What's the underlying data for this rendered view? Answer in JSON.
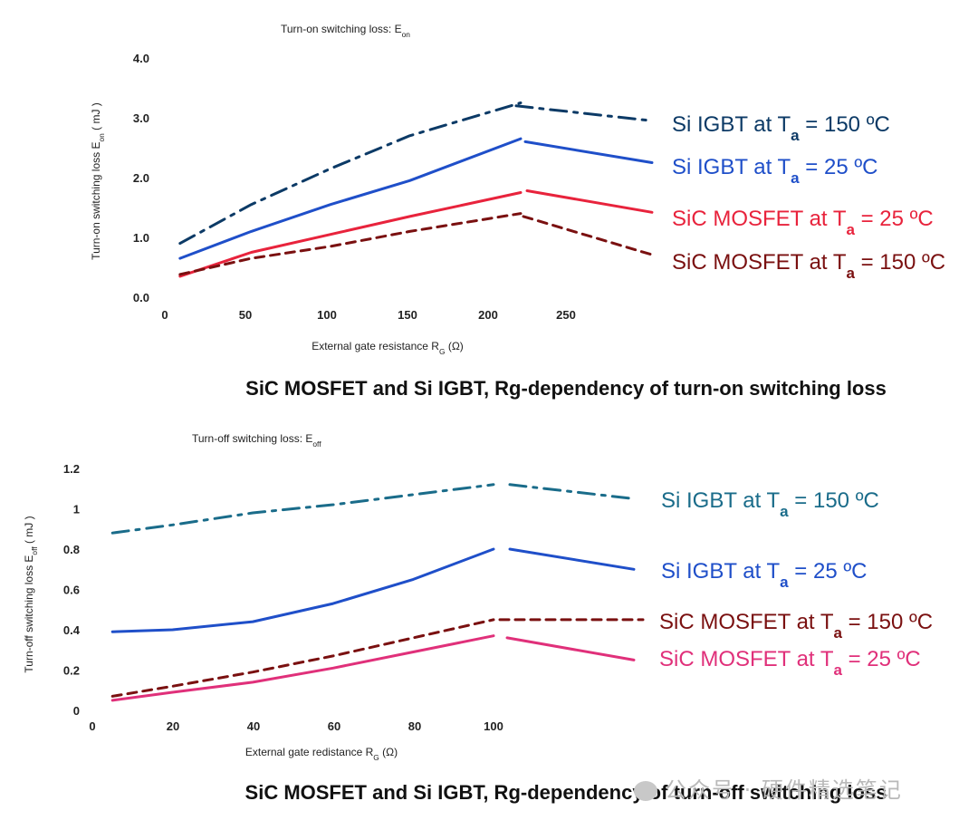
{
  "watermark": "公众号 · 硬件精选笔记",
  "chart_data": [
    {
      "type": "line",
      "title": "Turn-on switching loss: E_on",
      "caption": "SiC MOSFET and Si IGBT, Rg-dependency of turn-on switching loss",
      "xlabel": "External gate resistance R_G (Ω)",
      "ylabel": "Turn-on switching loss E_on ( mJ )",
      "xlim": [
        0,
        250
      ],
      "ylim": [
        0,
        4.0
      ],
      "xticks": [
        "0",
        "50",
        "100",
        "150",
        "200",
        "250"
      ],
      "yticks": [
        "0.0",
        "1.0",
        "2.0",
        "3.0",
        "4.0"
      ],
      "series": [
        {
          "name": "Si IGBT at Ta = 150 ºC",
          "label_main": "Si IGBT at T",
          "label_sub": "a",
          "label_tail": " = 150 ºC",
          "color": "#0c3a66",
          "dash": "dashdot",
          "x": [
            5,
            50,
            100,
            150,
            220
          ],
          "y": [
            0.9,
            1.55,
            2.15,
            2.7,
            3.25
          ],
          "tail": [
            [
              225,
              3.2
            ],
            [
              300,
              2.95
            ]
          ]
        },
        {
          "name": "Si IGBT at Ta = 25 ºC",
          "label_main": "Si IGBT at T",
          "label_sub": "a",
          "label_tail": " = 25 ºC",
          "color": "#1f4fc9",
          "dash": "solid",
          "x": [
            5,
            50,
            100,
            150,
            220
          ],
          "y": [
            0.65,
            1.1,
            1.55,
            1.95,
            2.65
          ],
          "tail": [
            [
              225,
              2.6
            ],
            [
              300,
              2.25
            ]
          ]
        },
        {
          "name": "SiC MOSFET at Ta = 25 ºC",
          "label_main": "SiC MOSFET at T",
          "label_sub": "a",
          "label_tail": " = 25 ºC",
          "color": "#e8233c",
          "dash": "solid",
          "x": [
            5,
            50,
            100,
            150,
            220
          ],
          "y": [
            0.35,
            0.75,
            1.05,
            1.35,
            1.75
          ],
          "tail": [
            [
              225,
              1.78
            ],
            [
              300,
              1.42
            ]
          ]
        },
        {
          "name": "SiC MOSFET at Ta = 150 ºC",
          "label_main": "SiC MOSFET at T",
          "label_sub": "a",
          "label_tail": " = 150 ºC",
          "color": "#7a1010",
          "dash": "dash",
          "x": [
            5,
            50,
            100,
            150,
            220
          ],
          "y": [
            0.38,
            0.65,
            0.85,
            1.1,
            1.4
          ],
          "tail": [
            [
              225,
              1.35
            ],
            [
              300,
              0.72
            ]
          ]
        }
      ]
    },
    {
      "type": "line",
      "title": "Turn-off switching loss: E_off",
      "caption": "SiC MOSFET and Si IGBT, Rg-dependency of turn-off switching loss",
      "xlabel": "External gate redistance R_G (Ω)",
      "ylabel": "Turn-off switching loss E_off ( mJ )",
      "xlim": [
        0,
        100
      ],
      "ylim": [
        0,
        1.2
      ],
      "xticks": [
        "0",
        "20",
        "40",
        "60",
        "80",
        "100"
      ],
      "yticks": [
        "0",
        "0.2",
        "0.4",
        "0.6",
        "0.8",
        "1",
        "1.2"
      ],
      "series": [
        {
          "name": "Si IGBT at Ta = 150 ºC",
          "label_main": "Si IGBT at T",
          "label_sub": "a",
          "label_tail": " = 150 ºC",
          "color": "#1a6c8a",
          "dash": "dashdot",
          "x": [
            5,
            20,
            40,
            60,
            80,
            100
          ],
          "y": [
            0.88,
            0.92,
            0.98,
            1.02,
            1.07,
            1.12
          ],
          "tail": [
            [
              104,
              1.12
            ],
            [
              135,
              1.05
            ]
          ]
        },
        {
          "name": "Si IGBT at Ta = 25 ºC",
          "label_main": "Si IGBT at T",
          "label_sub": "a",
          "label_tail": " = 25 ºC",
          "color": "#1f4fc9",
          "dash": "solid",
          "x": [
            5,
            20,
            40,
            60,
            80,
            100
          ],
          "y": [
            0.39,
            0.4,
            0.44,
            0.53,
            0.65,
            0.8
          ],
          "tail": [
            [
              104,
              0.8
            ],
            [
              135,
              0.7
            ]
          ]
        },
        {
          "name": "SiC MOSFET at Ta = 150 ºC",
          "label_main": "SiC MOSFET at T",
          "label_sub": "a",
          "label_tail": " = 150 ºC",
          "color": "#7a1010",
          "dash": "dash",
          "x": [
            5,
            20,
            40,
            60,
            80,
            100
          ],
          "y": [
            0.07,
            0.12,
            0.19,
            0.27,
            0.36,
            0.45
          ],
          "tail": [
            [
              104,
              0.45
            ],
            [
              135,
              0.45
            ]
          ]
        },
        {
          "name": "SiC MOSFET at Ta = 25 ºC",
          "label_main": "SiC MOSFET at T",
          "label_sub": "a",
          "label_tail": " = 25 ºC",
          "color": "#e0307a",
          "dash": "solid",
          "x": [
            5,
            20,
            40,
            60,
            80,
            100
          ],
          "y": [
            0.05,
            0.09,
            0.14,
            0.21,
            0.29,
            0.37
          ],
          "tail": [
            [
              104,
              0.36
            ],
            [
              135,
              0.25
            ]
          ]
        }
      ]
    }
  ]
}
